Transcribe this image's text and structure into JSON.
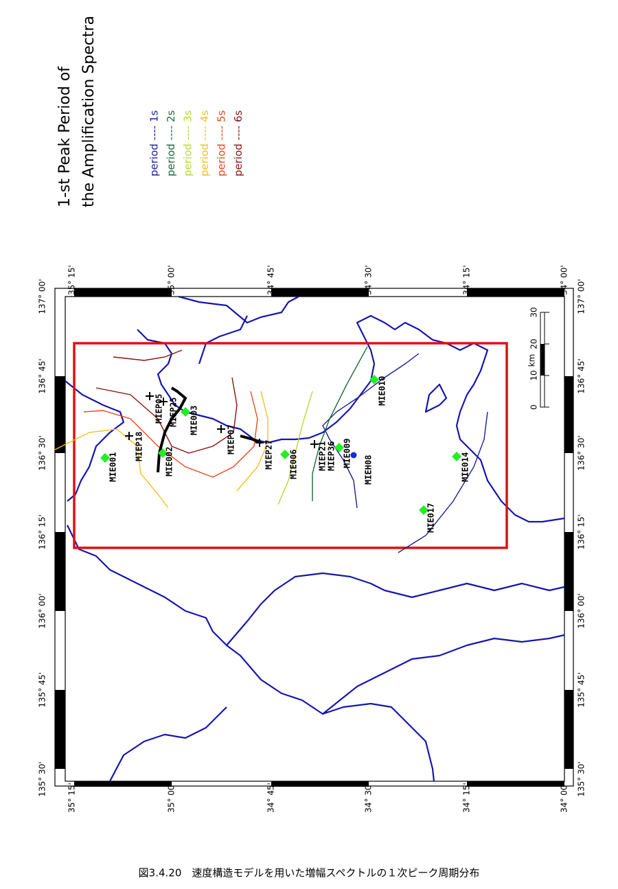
{
  "title": [
    "1-st Peak Period of",
    "the Amplification Spectra"
  ],
  "legend": [
    {
      "label": "period ---- 1s",
      "color": "#1c1c9c"
    },
    {
      "label": "period ---- 2s",
      "color": "#1a6a3a"
    },
    {
      "label": "period ---- 3s",
      "color": "#b8d830"
    },
    {
      "label": "period ---- 4s",
      "color": "#f0c020"
    },
    {
      "label": "period ---- 5s",
      "color": "#e84818"
    },
    {
      "label": "period ---- 6s",
      "color": "#8a1010"
    }
  ],
  "latitude_labels": [
    "35° 15'",
    "35° 00'",
    "34° 45'",
    "34° 30'",
    "34° 15'",
    "34° 00'"
  ],
  "longitude_labels": [
    "137° 00'",
    "136° 45'",
    "136° 30'",
    "136° 15'",
    "136° 00'",
    "135° 45'",
    "135° 30'"
  ],
  "stations": [
    {
      "name": "MIE001",
      "marker": "diamond"
    },
    {
      "name": "MIEP18",
      "marker": "cross"
    },
    {
      "name": "MIEP05",
      "marker": "cross"
    },
    {
      "name": "MIEP25",
      "marker": "cross"
    },
    {
      "name": "MIE002",
      "marker": "diamond"
    },
    {
      "name": "MIE003",
      "marker": "diamond"
    },
    {
      "name": "MIEP07",
      "marker": "cross"
    },
    {
      "name": "MIEP27",
      "marker": "cross"
    },
    {
      "name": "MIE006",
      "marker": "diamond"
    },
    {
      "name": "MIEP21",
      "marker": "cross"
    },
    {
      "name": "MIEP36",
      "marker": "cross"
    },
    {
      "name": "MIE009",
      "marker": "diamond"
    },
    {
      "name": "MIEH08",
      "marker": "dot"
    },
    {
      "name": "MIE010",
      "marker": "diamond"
    },
    {
      "name": "MIE017",
      "marker": "diamond"
    },
    {
      "name": "MIE014",
      "marker": "diamond"
    }
  ],
  "scale": {
    "unit": "km",
    "ticks": [
      0,
      10,
      20,
      30
    ]
  },
  "caption": "図3.4.20　速度構造モデルを用いた増幅スペクトルの１次ピーク周期分布"
}
